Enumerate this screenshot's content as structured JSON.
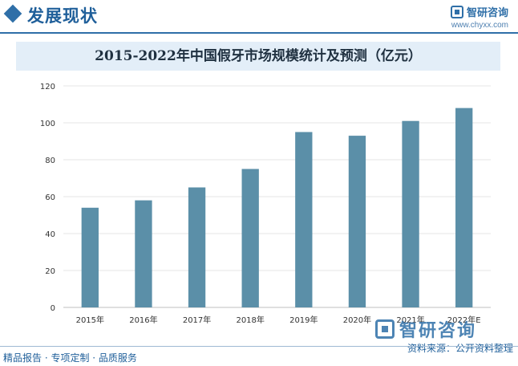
{
  "header": {
    "section_title": "发展现状",
    "brand_name": "智研咨询",
    "brand_url": "www.chyxx.com"
  },
  "colors": {
    "accent": "#2f6fa8",
    "bar": "#5b8fa8",
    "title_band": "#e3eef8"
  },
  "chart_data": {
    "type": "bar",
    "title": "2015-2022年中国假牙市场规模统计及预测（亿元）",
    "xlabel": "",
    "ylabel": "",
    "categories": [
      "2015年",
      "2016年",
      "2017年",
      "2018年",
      "2019年",
      "2020年",
      "2021年",
      "2022年E"
    ],
    "values": [
      54,
      58,
      65,
      75,
      95,
      93,
      101,
      108
    ],
    "ylim": [
      0,
      120
    ],
    "yticks": [
      0,
      20,
      40,
      60,
      80,
      100,
      120
    ],
    "grid": true,
    "legend": "none"
  },
  "footer": {
    "left_text": "精品报告 · 专项定制 · 品质服务",
    "source": "资料来源：公开资料整理",
    "watermark_name": "智研咨询"
  }
}
